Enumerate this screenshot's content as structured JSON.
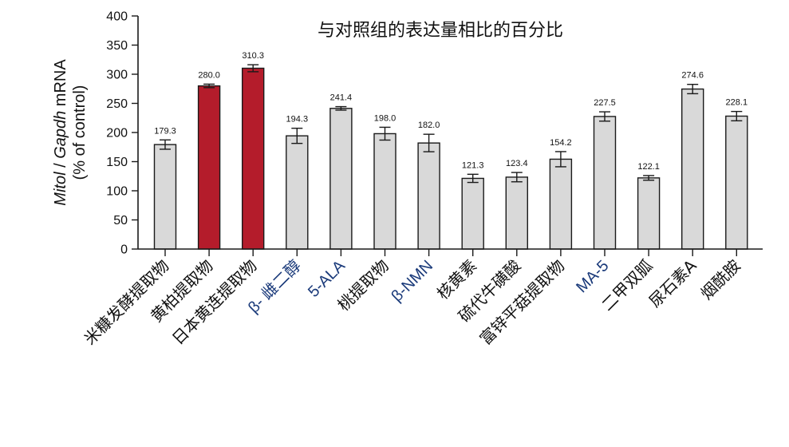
{
  "chart_data": {
    "type": "bar",
    "title": "与对照组的表达量相比的百分比",
    "xlabel": "",
    "ylabel": "Mitol / Gapdh mRNA (% of control)",
    "ylabel_lines": [
      "Mitol / Gapdh mRNA",
      "(% of control)"
    ],
    "ylim": [
      0,
      400
    ],
    "yticks": [
      0,
      50,
      100,
      150,
      200,
      250,
      300,
      350,
      400
    ],
    "grid": false,
    "legend": null,
    "categories": [
      "米糠发酵提取物",
      "黄柏提取物",
      "日本黄连提取物",
      "β- 雌二醇",
      "5-ALA",
      "桃提取物",
      "β-NMN",
      "核黄素",
      "硫代牛磺酸",
      "富锌平菇提取物",
      "MA-5",
      "二甲双胍",
      "尿石素A",
      "烟酰胺"
    ],
    "values": [
      179.3,
      280.0,
      310.3,
      194.3,
      241.4,
      198.0,
      182.0,
      121.3,
      123.4,
      154.2,
      227.5,
      122.1,
      274.6,
      228.1
    ],
    "value_labels": [
      "179.3",
      "280.0",
      "310.3",
      "194.3",
      "241.4",
      "198.0",
      "182.0",
      "121.3",
      "123.4",
      "154.2",
      "227.5",
      "122.1",
      "274.6",
      "228.1"
    ],
    "error": [
      8,
      3,
      6,
      13,
      3,
      11,
      15,
      7,
      8,
      13,
      8,
      4,
      8,
      8
    ],
    "highlighted": [
      false,
      true,
      true,
      false,
      false,
      false,
      false,
      false,
      false,
      false,
      false,
      false,
      false,
      false
    ],
    "latin_labels": [
      false,
      false,
      false,
      true,
      true,
      false,
      true,
      false,
      false,
      false,
      true,
      false,
      false,
      false
    ],
    "colors": {
      "default_bar": "#d9d9d9",
      "highlight_bar": "#b41c2b",
      "outline": "#1a1a1a",
      "latin_label": "#1a3a7a"
    }
  }
}
